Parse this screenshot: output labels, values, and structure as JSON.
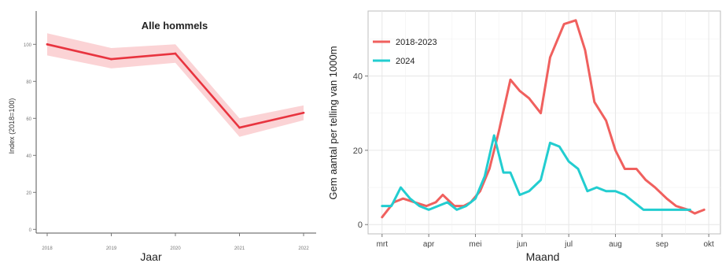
{
  "chart_data": [
    {
      "type": "line",
      "title": "Alle hommels",
      "xlabel": "Jaar",
      "ylabel": "Index (2018=100)",
      "x": [
        2018,
        2019,
        2020,
        2021,
        2022
      ],
      "xticks": [
        "2018",
        "2019",
        "2020",
        "2021",
        "2022"
      ],
      "yticks": [
        "0",
        "20",
        "40",
        "60",
        "80",
        "100"
      ],
      "ylim": [
        -2,
        118
      ],
      "grid": false,
      "series": [
        {
          "values": [
            100,
            92,
            95,
            55,
            63
          ],
          "lower": [
            94,
            87,
            90,
            50,
            59
          ],
          "upper": [
            106,
            98,
            100,
            60,
            67
          ],
          "color": "#e8343f",
          "band_color": "#fbd3d5"
        }
      ]
    },
    {
      "type": "line",
      "xlabel": "Maand",
      "ylabel": "Gem aantal per telling van 1000m",
      "xticks": [
        "mrt",
        "apr",
        "mei",
        "jun",
        "jul",
        "aug",
        "sep",
        "okt"
      ],
      "yticks": [
        "0",
        "20",
        "40"
      ],
      "ylim": [
        -2.5,
        57.5
      ],
      "xlim": [
        -0.3,
        7.25
      ],
      "grid": true,
      "legend": "top-left",
      "series": [
        {
          "name": "2018-2023",
          "color": "#f0605e",
          "x": [
            0.0,
            0.25,
            0.45,
            0.7,
            0.95,
            1.15,
            1.3,
            1.55,
            1.75,
            1.9,
            2.1,
            2.3,
            2.5,
            2.75,
            2.95,
            3.15,
            3.4,
            3.6,
            3.9,
            4.15,
            4.35,
            4.55,
            4.8,
            5.0,
            5.2,
            5.45,
            5.65,
            5.85,
            6.1,
            6.3,
            6.55,
            6.7,
            6.9
          ],
          "y": [
            2,
            6,
            7,
            6,
            5,
            6,
            8,
            5,
            5,
            6,
            9,
            15,
            25,
            39,
            36,
            34,
            30,
            45,
            54,
            55,
            47,
            33,
            28,
            20,
            15,
            15,
            12,
            10,
            7,
            5,
            4,
            3,
            4
          ]
        },
        {
          "name": "2024",
          "color": "#22cdd0",
          "x": [
            0.0,
            0.2,
            0.4,
            0.6,
            0.8,
            1.0,
            1.2,
            1.4,
            1.6,
            1.8,
            2.0,
            2.2,
            2.4,
            2.6,
            2.75,
            2.95,
            3.15,
            3.4,
            3.6,
            3.8,
            4.0,
            4.2,
            4.4,
            4.6,
            4.8,
            5.0,
            5.2,
            5.4,
            5.6,
            5.8,
            6.0,
            6.2,
            6.4,
            6.6
          ],
          "y": [
            5,
            5,
            10,
            7,
            5,
            4,
            5,
            6,
            4,
            5,
            7,
            13,
            24,
            14,
            14,
            8,
            9,
            12,
            22,
            21,
            17,
            15,
            9,
            10,
            9,
            9,
            8,
            6,
            4,
            4,
            4,
            4,
            4,
            4
          ]
        }
      ]
    }
  ]
}
